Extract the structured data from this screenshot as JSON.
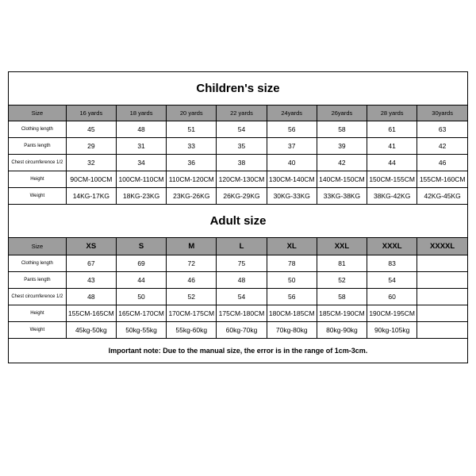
{
  "children": {
    "title": "Children's size",
    "header": [
      "Size",
      "16 yards",
      "18 yards",
      "20 yards",
      "22 yards",
      "24yards",
      "26yards",
      "28 yards",
      "30yards"
    ],
    "rows": [
      {
        "label": "Clothing length",
        "values": [
          "45",
          "48",
          "51",
          "54",
          "56",
          "58",
          "61",
          "63"
        ]
      },
      {
        "label": "Pants length",
        "values": [
          "29",
          "31",
          "33",
          "35",
          "37",
          "39",
          "41",
          "42"
        ]
      },
      {
        "label": "Chest circumference 1/2",
        "values": [
          "32",
          "34",
          "36",
          "38",
          "40",
          "42",
          "44",
          "46"
        ]
      },
      {
        "label": "Height",
        "values": [
          "90CM-100CM",
          "100CM-110CM",
          "110CM-120CM",
          "120CM-130CM",
          "130CM-140CM",
          "140CM-150CM",
          "150CM-155CM",
          "155CM-160CM"
        ]
      },
      {
        "label": "Weight",
        "values": [
          "14KG-17KG",
          "18KG-23KG",
          "23KG-26KG",
          "26KG-29KG",
          "30KG-33KG",
          "33KG-38KG",
          "38KG-42KG",
          "42KG-45KG"
        ]
      }
    ]
  },
  "adult": {
    "title": "Adult size",
    "header": [
      "Size",
      "XS",
      "S",
      "M",
      "L",
      "XL",
      "XXL",
      "XXXL",
      "XXXXL"
    ],
    "rows": [
      {
        "label": "Clothing length",
        "values": [
          "67",
          "69",
          "72",
          "75",
          "78",
          "81",
          "83",
          ""
        ]
      },
      {
        "label": "Pants length",
        "values": [
          "43",
          "44",
          "46",
          "48",
          "50",
          "52",
          "54",
          ""
        ]
      },
      {
        "label": "Chest circumference 1/2",
        "values": [
          "48",
          "50",
          "52",
          "54",
          "56",
          "58",
          "60",
          ""
        ]
      },
      {
        "label": "Height",
        "values": [
          "155CM-165CM",
          "165CM-170CM",
          "170CM-175CM",
          "175CM-180CM",
          "180CM-185CM",
          "185CM-190CM",
          "190CM-195CM",
          ""
        ]
      },
      {
        "label": "Weight",
        "values": [
          "45kg-50kg",
          "50kg-55kg",
          "55kg-60kg",
          "60kg-70kg",
          "70kg-80kg",
          "80kg-90kg",
          "90kg-105kg",
          ""
        ]
      }
    ]
  },
  "note": "Important note: Due to the manual size, the error is in the range of 1cm-3cm.",
  "style": {
    "border_color": "#000000",
    "header_bg": "#9d9d9d",
    "body_bg": "#ffffff"
  }
}
